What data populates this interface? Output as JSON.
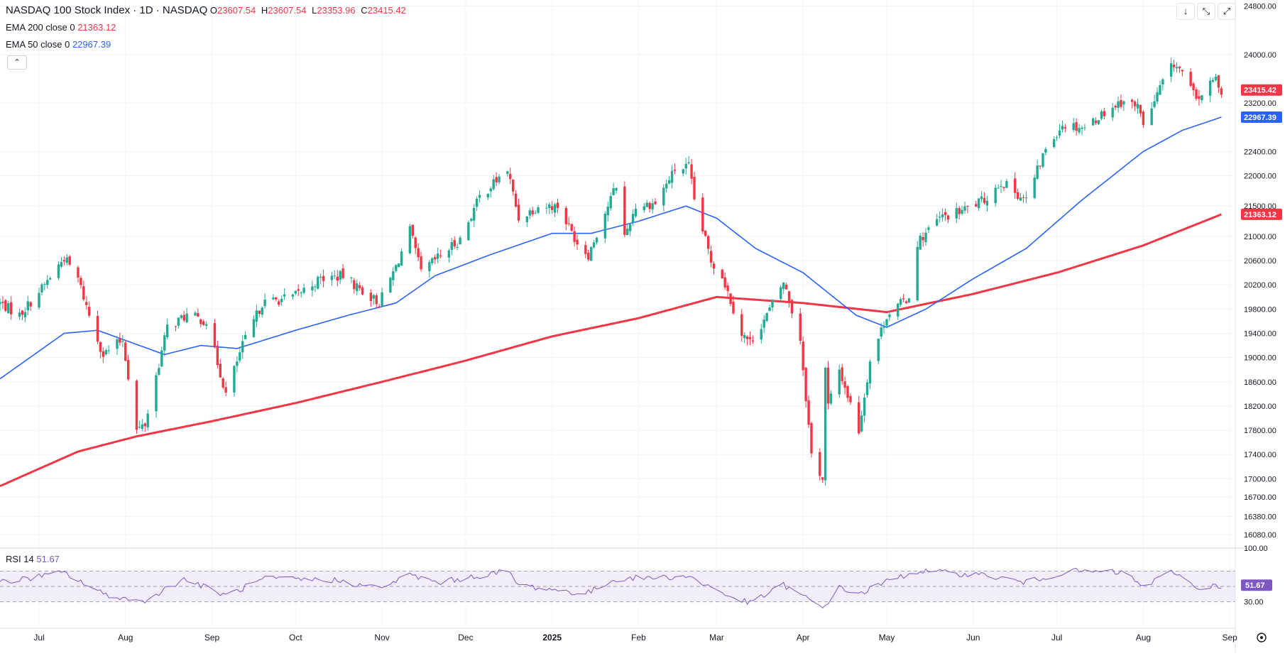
{
  "header": {
    "symbol": "NASDAQ 100 Stock Index · 1D · NASDAQ",
    "o_label": "O",
    "o": "23607.54",
    "h_label": "H",
    "h": "23607.54",
    "l_label": "L",
    "l": "23353.96",
    "c_label": "C",
    "c": "23415.42",
    "ema200_label": "EMA 200 close 0",
    "ema200": "21363.12",
    "ema50_label": "EMA 50 close 0",
    "ema50": "22967.39",
    "collapse_icon": "chevron-up-icon"
  },
  "toolbar": {
    "buttons": [
      {
        "icon": "arrow-down-icon",
        "glyph": "↓"
      },
      {
        "icon": "collapse-icon",
        "glyph": "⤡"
      },
      {
        "icon": "maximize-icon",
        "glyph": "⤢"
      }
    ]
  },
  "rsi": {
    "label": "RSI 14",
    "value": "51.67",
    "axis_ticks": [
      "100.00",
      "30.00"
    ],
    "upper_band": 70,
    "lower_band": 30,
    "mid": 50,
    "ylim": [
      0,
      100
    ]
  },
  "settings_icon": "gear-icon",
  "colors": {
    "up": "#22ab94",
    "down": "#f23645",
    "ema200": "#f23645",
    "ema50": "#2962ff",
    "rsi": "#7e57c2",
    "rsi_band": "#ede7f6",
    "grid": "#f0f3fa"
  },
  "chart_data": {
    "type": "candlestick",
    "title": "NASDAQ 100 Stock Index · 1D · NASDAQ",
    "xlabel": "",
    "ylabel": "",
    "x_range": [
      "2024-06-17",
      "2025-09-03"
    ],
    "ylim": [
      15880,
      24900
    ],
    "y_ticks": [
      "24800.00",
      "24000.00",
      "23200.00",
      "22400.00",
      "22000.00",
      "21500.00",
      "21000.00",
      "20600.00",
      "20200.00",
      "19800.00",
      "19400.00",
      "19000.00",
      "18600.00",
      "18200.00",
      "17800.00",
      "17400.00",
      "17000.00",
      "16700.00",
      "16380.00",
      "16080.00"
    ],
    "x_ticks": [
      {
        "date": "2024-07-01",
        "label": "Jul"
      },
      {
        "date": "2024-08-01",
        "label": "Aug"
      },
      {
        "date": "2024-09-01",
        "label": "Sep"
      },
      {
        "date": "2024-10-01",
        "label": "Oct"
      },
      {
        "date": "2024-11-01",
        "label": "Nov"
      },
      {
        "date": "2024-12-01",
        "label": "Dec"
      },
      {
        "date": "2025-01-01",
        "label": "2025"
      },
      {
        "date": "2025-02-01",
        "label": "Feb"
      },
      {
        "date": "2025-03-01",
        "label": "Mar"
      },
      {
        "date": "2025-04-01",
        "label": "Apr"
      },
      {
        "date": "2025-05-01",
        "label": "May"
      },
      {
        "date": "2025-06-01",
        "label": "Jun"
      },
      {
        "date": "2025-07-01",
        "label": "Jul"
      },
      {
        "date": "2025-08-01",
        "label": "Aug"
      },
      {
        "date": "2025-09-01",
        "label": "Sep"
      }
    ],
    "last_close": 23415.42,
    "price_anchors": [
      [
        "2024-06-17",
        19900
      ],
      [
        "2024-06-24",
        19700
      ],
      [
        "2024-07-03",
        20200
      ],
      [
        "2024-07-10",
        20650
      ],
      [
        "2024-07-15",
        20300
      ],
      [
        "2024-07-19",
        19700
      ],
      [
        "2024-07-24",
        19050
      ],
      [
        "2024-07-31",
        19300
      ],
      [
        "2024-08-05",
        17800
      ],
      [
        "2024-08-08",
        17900
      ],
      [
        "2024-08-16",
        19500
      ],
      [
        "2024-08-23",
        19700
      ],
      [
        "2024-08-30",
        19600
      ],
      [
        "2024-09-06",
        18400
      ],
      [
        "2024-09-12",
        19200
      ],
      [
        "2024-09-19",
        19900
      ],
      [
        "2024-09-30",
        20000
      ],
      [
        "2024-10-10",
        20300
      ],
      [
        "2024-10-18",
        20350
      ],
      [
        "2024-10-25",
        20100
      ],
      [
        "2024-10-31",
        19900
      ],
      [
        "2024-11-06",
        20500
      ],
      [
        "2024-11-11",
        21100
      ],
      [
        "2024-11-15",
        20400
      ],
      [
        "2024-11-21",
        20650
      ],
      [
        "2024-11-29",
        20950
      ],
      [
        "2024-12-06",
        21650
      ],
      [
        "2024-12-16",
        22100
      ],
      [
        "2024-12-20",
        21300
      ],
      [
        "2024-12-27",
        21500
      ],
      [
        "2025-01-03",
        21500
      ],
      [
        "2025-01-10",
        20900
      ],
      [
        "2025-01-14",
        20700
      ],
      [
        "2025-01-24",
        21850
      ],
      [
        "2025-01-27",
        21000
      ],
      [
        "2025-01-31",
        21500
      ],
      [
        "2025-02-07",
        21550
      ],
      [
        "2025-02-14",
        22100
      ],
      [
        "2025-02-19",
        22150
      ],
      [
        "2025-02-21",
        21600
      ],
      [
        "2025-02-27",
        20600
      ],
      [
        "2025-03-03",
        20350
      ],
      [
        "2025-03-10",
        19400
      ],
      [
        "2025-03-13",
        19250
      ],
      [
        "2025-03-19",
        19700
      ],
      [
        "2025-03-25",
        20250
      ],
      [
        "2025-03-31",
        19300
      ],
      [
        "2025-04-04",
        17400
      ],
      [
        "2025-04-07",
        17100
      ],
      [
        "2025-04-08",
        17000
      ],
      [
        "2025-04-09",
        18800
      ],
      [
        "2025-04-10",
        18200
      ],
      [
        "2025-04-14",
        18800
      ],
      [
        "2025-04-21",
        17800
      ],
      [
        "2025-04-25",
        18950
      ],
      [
        "2025-05-01",
        19700
      ],
      [
        "2025-05-09",
        20000
      ],
      [
        "2025-05-12",
        20900
      ],
      [
        "2025-05-20",
        21300
      ],
      [
        "2025-05-27",
        21400
      ],
      [
        "2025-06-05",
        21600
      ],
      [
        "2025-06-11",
        21900
      ],
      [
        "2025-06-20",
        21600
      ],
      [
        "2025-06-27",
        22450
      ],
      [
        "2025-07-03",
        22850
      ],
      [
        "2025-07-11",
        22800
      ],
      [
        "2025-07-18",
        23050
      ],
      [
        "2025-07-25",
        23250
      ],
      [
        "2025-07-31",
        23100
      ],
      [
        "2025-08-01",
        22800
      ],
      [
        "2025-08-08",
        23550
      ],
      [
        "2025-08-12",
        23850
      ],
      [
        "2025-08-15",
        23700
      ],
      [
        "2025-08-20",
        23250
      ],
      [
        "2025-08-27",
        23600
      ],
      [
        "2025-08-29",
        23415
      ]
    ],
    "ema_200_anchors": [
      [
        "2024-06-17",
        16880
      ],
      [
        "2024-07-15",
        17450
      ],
      [
        "2024-08-05",
        17700
      ],
      [
        "2024-09-01",
        17950
      ],
      [
        "2024-10-01",
        18250
      ],
      [
        "2024-11-01",
        18600
      ],
      [
        "2024-12-01",
        18950
      ],
      [
        "2025-01-01",
        19350
      ],
      [
        "2025-02-01",
        19650
      ],
      [
        "2025-03-01",
        20000
      ],
      [
        "2025-04-01",
        19900
      ],
      [
        "2025-05-01",
        19750
      ],
      [
        "2025-06-01",
        20050
      ],
      [
        "2025-07-01",
        20400
      ],
      [
        "2025-08-01",
        20850
      ],
      [
        "2025-08-29",
        21363
      ]
    ],
    "ema_50_anchors": [
      [
        "2024-06-17",
        18650
      ],
      [
        "2024-07-10",
        19400
      ],
      [
        "2024-07-22",
        19450
      ],
      [
        "2024-08-15",
        19050
      ],
      [
        "2024-08-28",
        19200
      ],
      [
        "2024-09-10",
        19150
      ],
      [
        "2024-10-01",
        19450
      ],
      [
        "2024-10-20",
        19700
      ],
      [
        "2024-11-06",
        19900
      ],
      [
        "2024-11-20",
        20350
      ],
      [
        "2024-12-10",
        20700
      ],
      [
        "2025-01-01",
        21050
      ],
      [
        "2025-01-15",
        21050
      ],
      [
        "2025-02-01",
        21250
      ],
      [
        "2025-02-18",
        21500
      ],
      [
        "2025-03-01",
        21300
      ],
      [
        "2025-03-15",
        20800
      ],
      [
        "2025-04-01",
        20400
      ],
      [
        "2025-04-20",
        19700
      ],
      [
        "2025-05-01",
        19500
      ],
      [
        "2025-05-15",
        19800
      ],
      [
        "2025-06-01",
        20300
      ],
      [
        "2025-06-20",
        20800
      ],
      [
        "2025-07-10",
        21600
      ],
      [
        "2025-08-01",
        22400
      ],
      [
        "2025-08-15",
        22750
      ],
      [
        "2025-08-29",
        22967
      ]
    ],
    "rsi_14_anchors": [
      [
        "2024-06-17",
        55
      ],
      [
        "2024-07-10",
        68
      ],
      [
        "2024-07-24",
        40
      ],
      [
        "2024-08-07",
        30
      ],
      [
        "2024-08-22",
        60
      ],
      [
        "2024-09-06",
        38
      ],
      [
        "2024-09-20",
        60
      ],
      [
        "2024-10-15",
        58
      ],
      [
        "2024-10-31",
        48
      ],
      [
        "2024-11-11",
        65
      ],
      [
        "2024-11-21",
        55
      ],
      [
        "2024-12-16",
        70
      ],
      [
        "2024-12-20",
        52
      ],
      [
        "2025-01-13",
        40
      ],
      [
        "2025-01-24",
        60
      ],
      [
        "2025-02-19",
        63
      ],
      [
        "2025-03-05",
        38
      ],
      [
        "2025-03-13",
        28
      ],
      [
        "2025-03-25",
        52
      ],
      [
        "2025-04-08",
        22
      ],
      [
        "2025-04-14",
        48
      ],
      [
        "2025-04-21",
        40
      ],
      [
        "2025-05-02",
        58
      ],
      [
        "2025-05-12",
        70
      ],
      [
        "2025-06-05",
        65
      ],
      [
        "2025-06-20",
        55
      ],
      [
        "2025-07-05",
        70
      ],
      [
        "2025-07-25",
        68
      ],
      [
        "2025-08-01",
        50
      ],
      [
        "2025-08-12",
        70
      ],
      [
        "2025-08-20",
        48
      ],
      [
        "2025-08-29",
        51.67
      ]
    ]
  }
}
